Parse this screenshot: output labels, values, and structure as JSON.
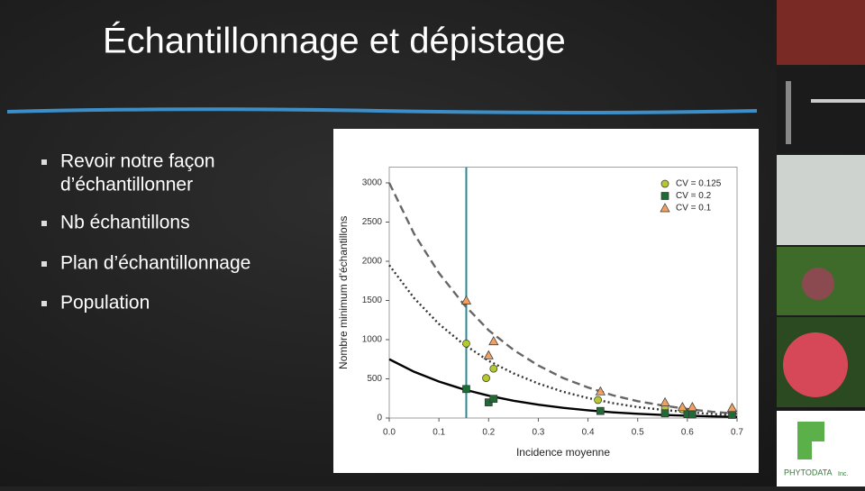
{
  "slide": {
    "title": "Échantillonnage et dépistage",
    "bullets": [
      [
        "Revoir notre façon",
        "d’échantillonner"
      ],
      [
        "Nb échantillons"
      ],
      [
        "Plan d’échantillonnage"
      ],
      [
        "Population"
      ]
    ],
    "logo": {
      "name": "PHYTODATA",
      "suffix": "Inc."
    }
  },
  "chart_data": {
    "type": "scatter",
    "x_label": "Incidence moyenne",
    "y_label": "Nombre minimum d'échantillons",
    "xlim": [
      0,
      0.7
    ],
    "xticks": [
      {
        "value": 0,
        "label": "0.0"
      },
      0.1,
      0.2,
      0.3,
      0.4,
      0.5,
      0.6,
      0.7
    ],
    "ylim": [
      0,
      3200
    ],
    "yticks": [
      0,
      500,
      1000,
      1500,
      2000,
      2500,
      3000
    ],
    "legend": "upper right",
    "vline": 0.155,
    "vline_color": "#2a8a94",
    "series": [
      {
        "name": "CV = 0.125",
        "color": "#b5c832",
        "marker": "circle",
        "x": [
          0.155,
          0.195,
          0.21,
          0.42,
          0.555,
          0.59,
          0.605,
          0.69
        ],
        "values": [
          950,
          510,
          630,
          230,
          130,
          110,
          80,
          75
        ]
      },
      {
        "name": "CV = 0.2",
        "color": "#1f6b35",
        "marker": "square",
        "x": [
          0.155,
          0.2,
          0.21,
          0.425,
          0.555,
          0.6,
          0.61,
          0.69
        ],
        "values": [
          370,
          200,
          245,
          90,
          60,
          50,
          45,
          40
        ]
      },
      {
        "name": "CV = 0.1",
        "color": "#f0a060",
        "marker": "triangle",
        "x": [
          0.155,
          0.2,
          0.21,
          0.425,
          0.555,
          0.59,
          0.61,
          0.69
        ],
        "values": [
          1500,
          800,
          980,
          340,
          200,
          140,
          140,
          130
        ]
      }
    ],
    "curves": [
      {
        "color": "#666666",
        "dash": "dashed",
        "x": [
          0,
          0.05,
          0.1,
          0.15,
          0.2,
          0.25,
          0.3,
          0.35,
          0.4,
          0.45,
          0.5,
          0.55,
          0.6,
          0.65,
          0.7
        ],
        "values": [
          3000,
          2350,
          1850,
          1450,
          1120,
          870,
          670,
          510,
          390,
          290,
          215,
          160,
          115,
          80,
          55
        ]
      },
      {
        "color": "#333333",
        "dash": "dotted",
        "x": [
          0,
          0.05,
          0.1,
          0.15,
          0.2,
          0.25,
          0.3,
          0.35,
          0.4,
          0.45,
          0.5,
          0.55,
          0.6,
          0.65,
          0.7
        ],
        "values": [
          1950,
          1530,
          1200,
          940,
          730,
          570,
          440,
          335,
          255,
          190,
          140,
          105,
          75,
          52,
          36
        ]
      },
      {
        "color": "#000000",
        "dash": "solid",
        "x": [
          0,
          0.05,
          0.1,
          0.15,
          0.2,
          0.25,
          0.3,
          0.35,
          0.4,
          0.45,
          0.5,
          0.55,
          0.6,
          0.65,
          0.7
        ],
        "values": [
          750,
          590,
          465,
          365,
          285,
          220,
          170,
          130,
          98,
          73,
          54,
          40,
          29,
          21,
          14
        ]
      }
    ]
  }
}
